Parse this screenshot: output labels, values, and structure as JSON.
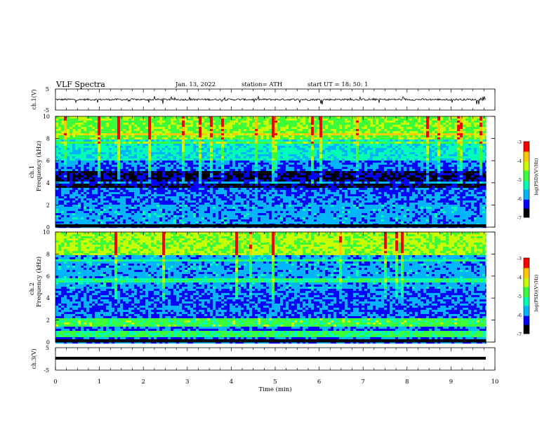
{
  "header": {
    "title": "VLF  Spectra",
    "date": "Jan.  13,  2022",
    "station": "station= ATH",
    "start": "start  UT  =   18: 50: 1"
  },
  "chart_data": [
    {
      "type": "line",
      "ylabel": "ch.1(V)",
      "ylim": [
        -5,
        5
      ],
      "yticks": [
        "5",
        "-5"
      ],
      "baseline": 0,
      "description_values": {
        "typical": 0,
        "spike_max": 1.5,
        "spike_min": -2
      }
    },
    {
      "type": "heatmap",
      "ylabel_line1": "ch.1",
      "ylabel_line2": "Frequency  (kHz)",
      "ylim": [
        0,
        10
      ],
      "yticks": [
        "0",
        "2",
        "4",
        "6",
        "8",
        "10"
      ],
      "colorbar": {
        "label": "log(PSD)(V²/Hz)",
        "range": [
          -7,
          -3
        ],
        "ticks": [
          "-3",
          "-4",
          "-5",
          "-6",
          "-7"
        ]
      },
      "bands_khz": [
        {
          "from": 8.0,
          "to": 10.0,
          "level": -4.6
        },
        {
          "from": 6.2,
          "to": 8.0,
          "level": -5.4
        },
        {
          "from": 3.6,
          "to": 5.2,
          "level": -6.6
        },
        {
          "from": 0.2,
          "to": 2.2,
          "level": -5.8
        }
      ]
    },
    {
      "type": "heatmap",
      "ylabel_line1": "ch.2",
      "ylabel_line2": "Frequency  (kHz)",
      "ylim": [
        0,
        10
      ],
      "yticks": [
        "0",
        "2",
        "4",
        "6",
        "8",
        "10"
      ],
      "colorbar": {
        "label": "log(PSD)(V²/Hz)",
        "range": [
          -7,
          -3
        ],
        "ticks": [
          "-3",
          "-4",
          "-5",
          "-6",
          "-7"
        ]
      },
      "bands_khz": [
        {
          "from": 8.0,
          "to": 10.0,
          "level": -4.4
        },
        {
          "from": 5.0,
          "to": 8.0,
          "level": -5.8
        },
        {
          "from": 1.5,
          "to": 2.3,
          "level": -4.8
        },
        {
          "from": 0.5,
          "to": 1.2,
          "level": -4.9
        }
      ]
    },
    {
      "type": "line",
      "ylabel": "ch.3(V)",
      "ylim": [
        -5,
        5
      ],
      "yticks": [
        "5",
        "-5"
      ],
      "constant_value": 0
    }
  ],
  "xaxis": {
    "label": "Time  (min)",
    "range": [
      0,
      10
    ],
    "data_end": 9.8,
    "ticks": [
      "0",
      "1",
      "2",
      "3",
      "4",
      "5",
      "6",
      "7",
      "8",
      "9",
      "10"
    ]
  },
  "colors": {
    "colormap": [
      "#000000",
      "#0000ff",
      "#00b4ff",
      "#00ffb4",
      "#3cff3c",
      "#c8ff00",
      "#ffc800",
      "#ff0000",
      "#ffffff"
    ]
  }
}
